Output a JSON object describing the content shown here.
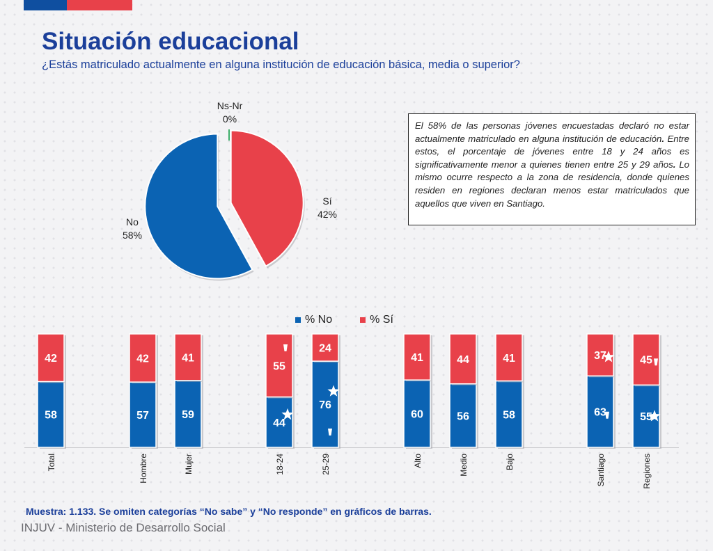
{
  "header": {
    "title": "Situación educacional",
    "subtitle": "¿Estás matriculado actualmente en alguna institución de educación básica, media o superior?"
  },
  "colors": {
    "no": "#0b63b3",
    "si": "#e8414a",
    "nsnr": "#3fae6a",
    "title": "#1b3f9a"
  },
  "pie_labels": {
    "nsnr": {
      "name": "Ns-Nr",
      "pct": "0%"
    },
    "si": {
      "name": "Sí",
      "pct": "42%"
    },
    "no": {
      "name": "No",
      "pct": "58%"
    }
  },
  "note": {
    "segments": [
      {
        "text": "El 58% de las personas jóvenes encuestadas declaró no estar actualmente matriculado en alguna institución de educación",
        "bold": false
      },
      {
        "text": ".",
        "bold": true
      },
      {
        "text": " Entre estos, el porcentaje de jóvenes entre 18 y 24 años es significativamente menor a quienes tienen entre 25 y 29 años",
        "bold": false
      },
      {
        "text": ".",
        "bold": true
      },
      {
        "text": " Lo mismo ocurre respecto a la zona de residencia, donde quienes residen en regiones declaran menos estar matriculados que aquellos que viven en Santiago.",
        "bold": false
      }
    ]
  },
  "legend": {
    "no": "% No",
    "si": "% Sí"
  },
  "footer": {
    "sample_note": "Muestra: 1.133. Se omiten categorías “No sabe” y “No responde” en gráficos de barras.",
    "brand": "INJUV - Ministerio de Desarrollo Social"
  },
  "chart_data": [
    {
      "type": "pie",
      "slices": [
        {
          "label": "Sí",
          "value": 42
        },
        {
          "label": "No",
          "value": 58
        },
        {
          "label": "Ns-Nr",
          "value": 0
        }
      ]
    },
    {
      "type": "bar",
      "stacked": true,
      "ylim": [
        0,
        100
      ],
      "categories": [
        "Total",
        "Hombre",
        "Mujer",
        "18-24",
        "25-29",
        "Alto",
        "Medio",
        "Bajo",
        "Santiago",
        "Regiones"
      ],
      "series": [
        {
          "name": "% No",
          "values": [
            58,
            57,
            59,
            44,
            76,
            60,
            56,
            58,
            63,
            55
          ]
        },
        {
          "name": "% Sí",
          "values": [
            42,
            42,
            41,
            55,
            24,
            41,
            44,
            41,
            37,
            45
          ]
        }
      ],
      "markers": [
        {
          "category": "18-24",
          "series": "% No",
          "symbol": "star"
        },
        {
          "category": "18-24",
          "series": "% Sí",
          "symbol": "down-triangle"
        },
        {
          "category": "25-29",
          "series": "% No",
          "symbol": "star"
        },
        {
          "category": "25-29",
          "series": "% No",
          "symbol": "down-triangle"
        },
        {
          "category": "Santiago",
          "series": "% Sí",
          "symbol": "star"
        },
        {
          "category": "Santiago",
          "series": "% No",
          "symbol": "down-triangle"
        },
        {
          "category": "Regiones",
          "series": "% Sí",
          "symbol": "down-triangle"
        },
        {
          "category": "Regiones",
          "series": "% No",
          "symbol": "star"
        }
      ],
      "legend_position": "top"
    }
  ]
}
